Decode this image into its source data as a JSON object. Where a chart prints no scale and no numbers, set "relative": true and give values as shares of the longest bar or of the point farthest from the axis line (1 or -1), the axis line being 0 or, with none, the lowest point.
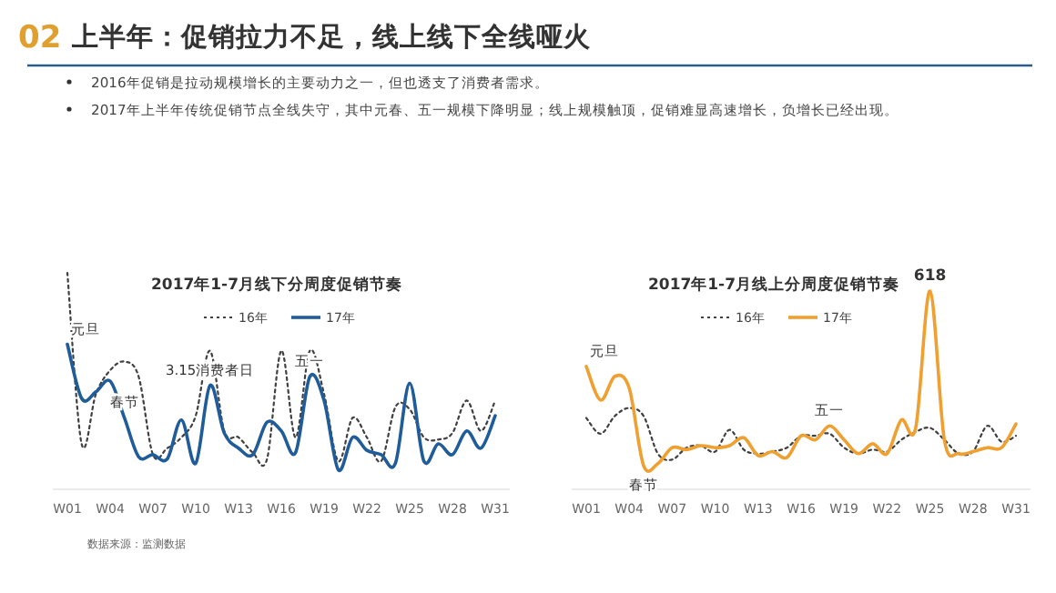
{
  "chart_data": [
    {
      "type": "other",
      "title": "上半年：促销拉力不足，线上线下全线哑火",
      "annotations": [
        "02",
        "2016年促销是拉动规模增长的主要动力之一，但也透支了消费者需求。",
        "2017年上半年传统促销节点全线失守，其中元春、五一规模下降明显；线上规模触顶，促销难显高速增长，负增长已经出现。"
      ]
    },
    {
      "type": "line",
      "title": "2017年1-7月线下分周度促销节奏",
      "relative": true,
      "legend": "top",
      "categories": [
        "W01",
        null,
        null,
        "W04",
        null,
        null,
        "W07",
        null,
        null,
        "W10",
        null,
        null,
        "W13",
        null,
        null,
        "W16",
        null,
        null,
        "W19",
        null,
        null,
        "W22",
        null,
        null,
        "W25",
        null,
        null,
        "W28",
        null,
        null,
        "W31"
      ],
      "series": [
        {
          "name": "16年",
          "color": "#404040",
          "line_style": "dotted",
          "values": [
            1.0,
            0.21,
            0.44,
            0.55,
            0.59,
            0.52,
            0.16,
            0.19,
            0.24,
            0.34,
            0.64,
            0.27,
            0.24,
            0.17,
            0.14,
            0.64,
            0.24,
            0.64,
            0.44,
            0.13,
            0.33,
            0.24,
            0.13,
            0.38,
            0.37,
            0.24,
            0.23,
            0.26,
            0.41,
            0.27,
            0.41
          ]
        },
        {
          "name": "17年",
          "color": "#1f5c99",
          "line_style": "solid",
          "values": [
            0.67,
            0.42,
            0.45,
            0.5,
            0.33,
            0.15,
            0.16,
            0.14,
            0.32,
            0.12,
            0.48,
            0.26,
            0.19,
            0.16,
            0.31,
            0.27,
            0.17,
            0.52,
            0.41,
            0.09,
            0.24,
            0.18,
            0.16,
            0.12,
            0.49,
            0.13,
            0.21,
            0.16,
            0.27,
            0.19,
            0.34
          ]
        }
      ],
      "annotations": [
        {
          "text": "元旦",
          "x": "W01",
          "y": 0.67
        },
        {
          "text": "春节",
          "y": 0.33
        },
        {
          "text": "3.15消费者日",
          "y": 0.48
        },
        {
          "text": "五一",
          "y": 0.52
        },
        "数据来源：监测数据"
      ]
    },
    {
      "type": "line",
      "title": "2017年1-7月线上分周度促销节奏",
      "relative": true,
      "legend": "top",
      "categories": [
        "W01",
        null,
        null,
        "W04",
        null,
        null,
        "W07",
        null,
        null,
        "W10",
        null,
        null,
        "W13",
        null,
        null,
        "W16",
        null,
        null,
        "W19",
        null,
        null,
        "W22",
        null,
        null,
        "W25",
        null,
        null,
        "W28",
        null,
        null,
        "W31"
      ],
      "series": [
        {
          "name": "16年",
          "color": "#404040",
          "line_style": "dotted",
          "values": [
            0.36,
            0.28,
            0.37,
            0.41,
            0.37,
            0.18,
            0.15,
            0.21,
            0.22,
            0.19,
            0.3,
            0.2,
            0.18,
            0.19,
            0.21,
            0.27,
            0.27,
            0.28,
            0.21,
            0.18,
            0.2,
            0.19,
            0.25,
            0.29,
            0.31,
            0.25,
            0.18,
            0.19,
            0.32,
            0.24,
            0.27
          ]
        },
        {
          "name": "17年",
          "color": "#f0a030",
          "line_style": "solid",
          "values": [
            0.62,
            0.45,
            0.57,
            0.51,
            0.12,
            0.13,
            0.21,
            0.2,
            0.22,
            0.21,
            0.22,
            0.26,
            0.17,
            0.19,
            0.16,
            0.27,
            0.25,
            0.32,
            0.25,
            0.18,
            0.23,
            0.18,
            0.35,
            0.31,
            1.0,
            0.25,
            0.18,
            0.19,
            0.21,
            0.21,
            0.33
          ]
        }
      ],
      "annotations": [
        {
          "text": "元旦",
          "x": "W01",
          "y": 0.62
        },
        {
          "text": "春节",
          "y": 0.12
        },
        {
          "text": "五一",
          "y": 0.32
        },
        {
          "text": "618",
          "x": "W25",
          "y": 1.0
        }
      ]
    }
  ]
}
